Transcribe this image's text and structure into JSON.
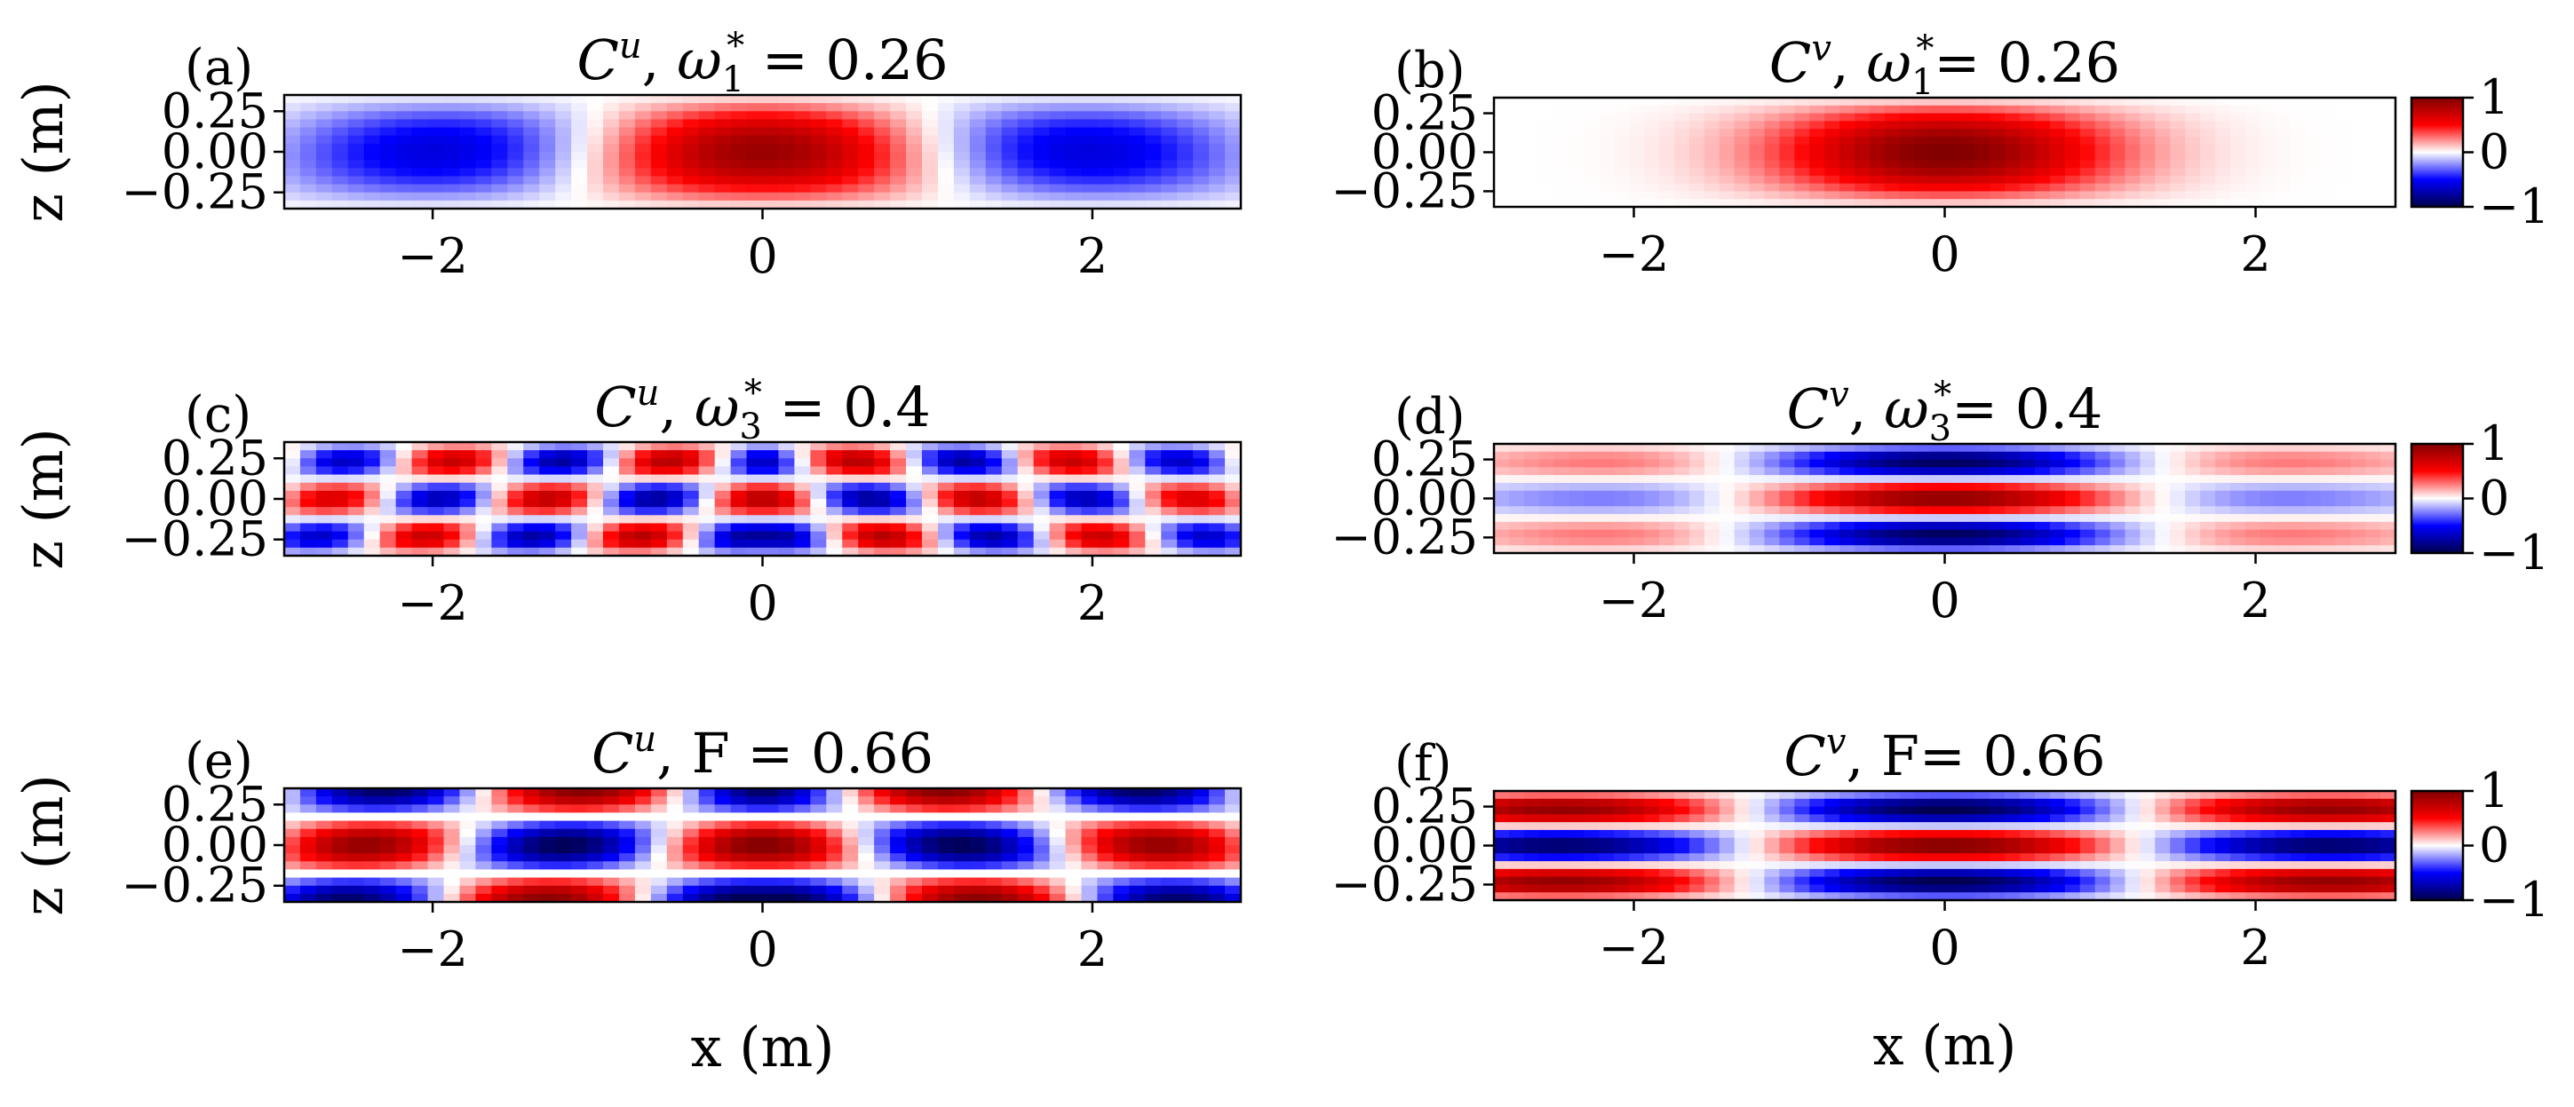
{
  "chart_data": [
    {
      "type": "heatmap",
      "panel": "(a)",
      "title": "C^u, ω₁* = 0.26",
      "title_parts": {
        "symbol": "C",
        "sup": "u",
        "rest": ", ω",
        "sub": "1",
        "sup2": "*",
        "tail": " = 0.26"
      },
      "xlabel": "",
      "ylabel": "z (m)",
      "xlim": [
        -2.9,
        2.9
      ],
      "ylim": [
        -0.35,
        0.35
      ],
      "xticks": [
        "−2",
        "0",
        "2"
      ],
      "yticks": [
        "0.25",
        "0.00",
        "−0.25"
      ],
      "field": {
        "kind": "u",
        "kx": 1.45,
        "nz": 0,
        "xenv": 3.2,
        "tilt": 0.1,
        "scale": 0.9
      },
      "colorscale": "seismic",
      "vmin": -1,
      "vmax": 1
    },
    {
      "type": "heatmap",
      "panel": "(b)",
      "title": "C^v, ω₁*= 0.26",
      "title_parts": {
        "symbol": "C",
        "sup": "v",
        "rest": ", ω",
        "sub": "1",
        "sup2": "*",
        "tail": "= 0.26"
      },
      "xlabel": "",
      "ylabel": "",
      "xlim": [
        -2.9,
        2.9
      ],
      "ylim": [
        -0.35,
        0.35
      ],
      "xticks": [
        "−2",
        "0",
        "2"
      ],
      "yticks": [
        "0.25",
        "0.00",
        "−0.25"
      ],
      "field": {
        "kind": "v",
        "kx": 0.55,
        "nz": 0,
        "xenv": 1.2,
        "tilt": 0.0,
        "scale": 1.0
      },
      "colorscale": "seismic",
      "vmin": -1,
      "vmax": 1,
      "colorbar": {
        "ticks": [
          "1",
          "0",
          "−1"
        ]
      }
    },
    {
      "type": "heatmap",
      "panel": "(c)",
      "title": "C^u, ω₃* = 0.4",
      "title_parts": {
        "symbol": "C",
        "sup": "u",
        "rest": ", ω",
        "sub": "3",
        "sup2": "*",
        "tail": " = 0.4"
      },
      "xlabel": "",
      "ylabel": "z (m)",
      "xlim": [
        -2.9,
        2.9
      ],
      "ylim": [
        -0.35,
        0.35
      ],
      "xticks": [
        "−2",
        "0",
        "2"
      ],
      "yticks": [
        "0.25",
        "0.00",
        "−0.25"
      ],
      "field": {
        "kind": "u",
        "kx": 4.8,
        "nz": 2,
        "xenv": 6.0,
        "tilt": 0.6,
        "scale": 0.8
      },
      "colorscale": "seismic",
      "vmin": -1,
      "vmax": 1
    },
    {
      "type": "heatmap",
      "panel": "(d)",
      "title": "C^v, ω₃*= 0.4",
      "title_parts": {
        "symbol": "C",
        "sup": "v",
        "rest": ", ω",
        "sub": "3",
        "sup2": "*",
        "tail": "= 0.4"
      },
      "xlabel": "",
      "ylabel": "",
      "xlim": [
        -2.9,
        2.9
      ],
      "ylim": [
        -0.35,
        0.35
      ],
      "xticks": [
        "−2",
        "0",
        "2"
      ],
      "yticks": [
        "0.25",
        "0.00",
        "−0.25"
      ],
      "field": {
        "kind": "v",
        "kx": 1.1,
        "nz": 2,
        "xenv": 2.2,
        "tilt": 0.0,
        "scale": 0.95
      },
      "colorscale": "seismic",
      "vmin": -1,
      "vmax": 1,
      "colorbar": {
        "ticks": [
          "1",
          "0",
          "−1"
        ]
      }
    },
    {
      "type": "heatmap",
      "panel": "(e)",
      "title": "C^u, F = 0.66",
      "title_parts": {
        "symbol": "C",
        "sup": "u",
        "rest": ", F",
        "sub": "",
        "sup2": "",
        "tail": " = 0.66"
      },
      "xlabel": "x (m)",
      "ylabel": "z (m)",
      "xlim": [
        -2.9,
        2.9
      ],
      "ylim": [
        -0.35,
        0.35
      ],
      "xticks": [
        "−2",
        "0",
        "2"
      ],
      "yticks": [
        "0.25",
        "0.00",
        "−0.25"
      ],
      "field": {
        "kind": "u",
        "kx": 2.6,
        "nz": 1,
        "xenv": 9.0,
        "tilt": 0.3,
        "scale": 1.0
      },
      "colorscale": "seismic",
      "vmin": -1,
      "vmax": 1
    },
    {
      "type": "heatmap",
      "panel": "(f)",
      "title": "C^v, F= 0.66",
      "title_parts": {
        "symbol": "C",
        "sup": "v",
        "rest": ", F",
        "sub": "",
        "sup2": "",
        "tail": "= 0.66"
      },
      "xlabel": "x (m)",
      "ylabel": "",
      "xlim": [
        -2.9,
        2.9
      ],
      "ylim": [
        -0.35,
        0.35
      ],
      "xticks": [
        "−2",
        "0",
        "2"
      ],
      "yticks": [
        "0.25",
        "0.00",
        "−0.25"
      ],
      "field": {
        "kind": "v",
        "kx": 1.25,
        "nz": 2,
        "xenv": 9.0,
        "tilt": 0.0,
        "scale": 1.0
      },
      "colorscale": "seismic",
      "vmin": -1,
      "vmax": 1,
      "colorbar": {
        "ticks": [
          "1",
          "0",
          "−1"
        ]
      }
    }
  ]
}
